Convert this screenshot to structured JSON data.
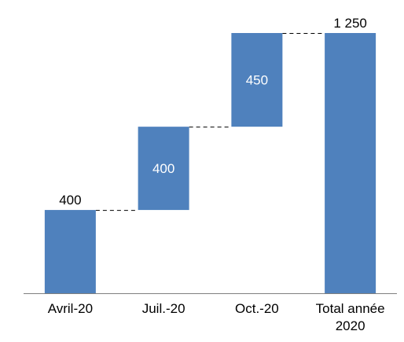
{
  "chart_data": {
    "type": "bar",
    "subtype": "waterfall",
    "categories": [
      "Avril-20",
      "Juil.-20",
      "Oct.-20",
      "Total année 2020"
    ],
    "category_lines": [
      [
        "Avril-20"
      ],
      [
        "Juil.-20"
      ],
      [
        "Oct.-20"
      ],
      [
        "Total année",
        "2020"
      ]
    ],
    "values": [
      400,
      400,
      450,
      1250
    ],
    "is_total": [
      false,
      false,
      false,
      true
    ],
    "data_labels": [
      "400",
      "400",
      "450",
      "1 250"
    ],
    "label_position": [
      "above",
      "inside",
      "inside",
      "above"
    ],
    "ylim": [
      0,
      1250
    ],
    "grid": false,
    "legend": "none",
    "title": "",
    "xlabel": "",
    "ylabel": "",
    "colors": {
      "bar": "#4F81BD",
      "connector": "#000000",
      "axis": "#7F7F7F"
    }
  }
}
